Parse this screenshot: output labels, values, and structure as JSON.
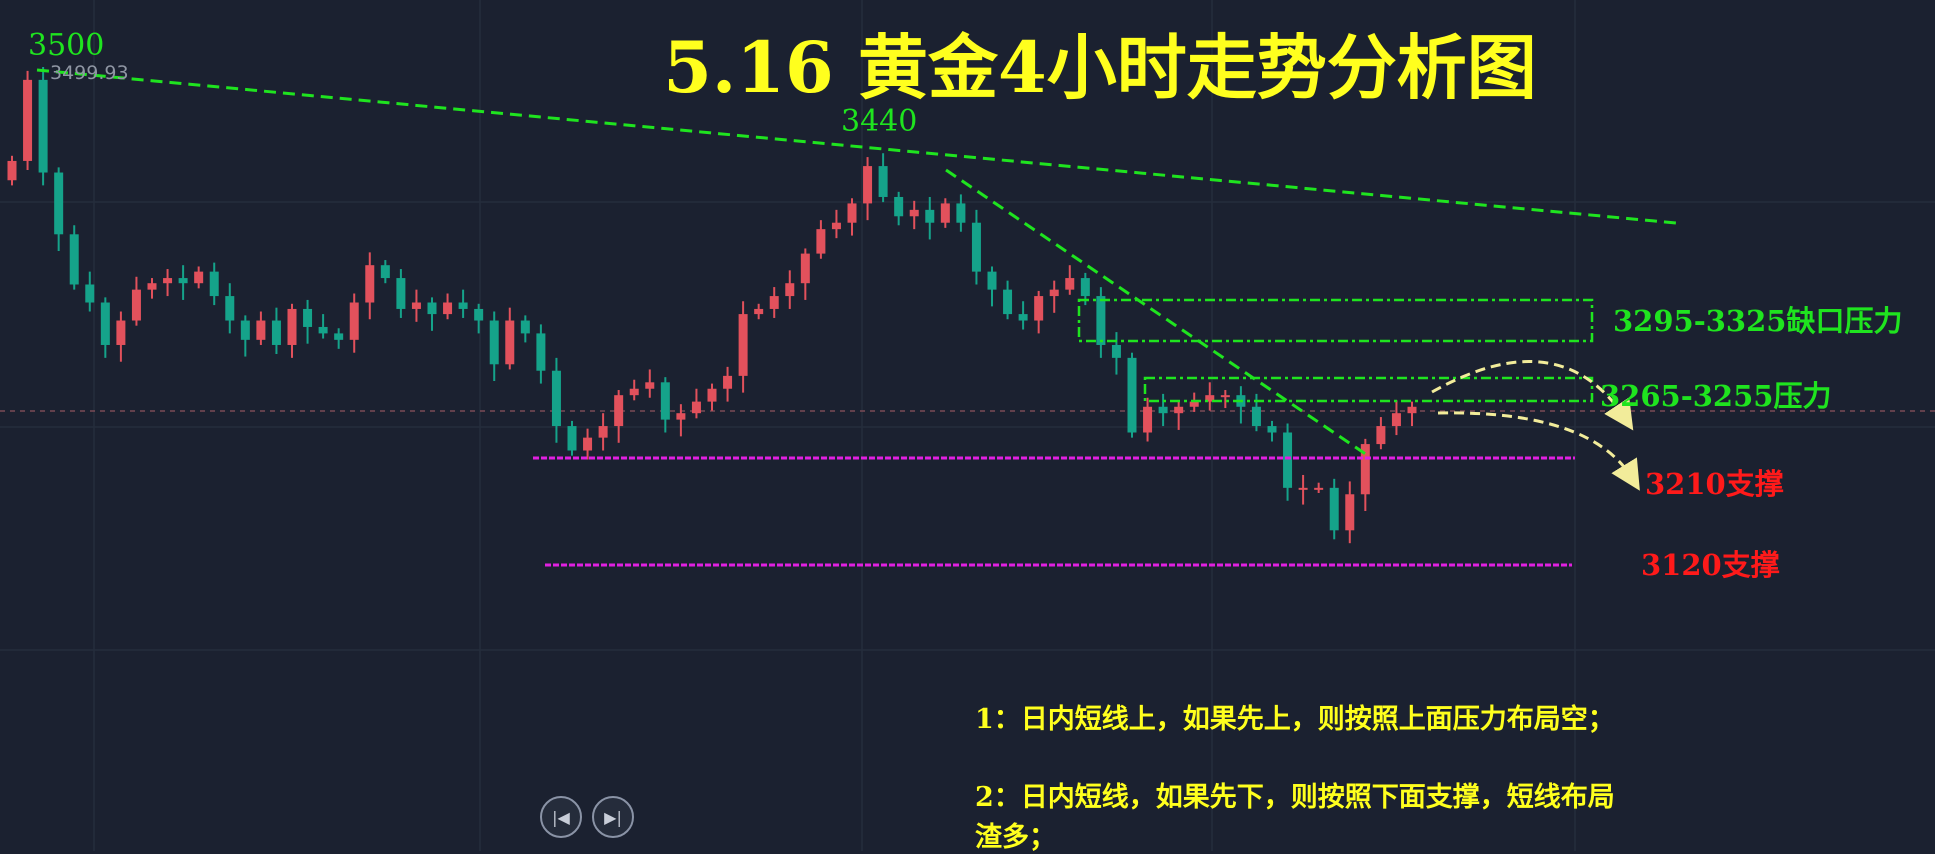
{
  "title": "5.16 黄金4小时走势分析图",
  "chart_data": {
    "type": "candlestick",
    "title": "5.16 黄金4小时走势分析图",
    "price_range": [
      3100,
      3520
    ],
    "grid": true,
    "colors": {
      "up": "#e2515c",
      "down": "#15a38a",
      "trendline": "#1fe41f",
      "support_line": "#e020e0",
      "arrow": "#f2ec9a"
    },
    "closes": [
      3434,
      3497,
      3425,
      3377,
      3338,
      3324,
      3291,
      3310,
      3334,
      3339,
      3343,
      3339,
      3348,
      3329,
      3310,
      3295,
      3310,
      3291,
      3319,
      3305,
      3300,
      3295,
      3324,
      3353,
      3343,
      3319,
      3324,
      3315,
      3324,
      3319,
      3310,
      3276,
      3310,
      3300,
      3271,
      3228,
      3209,
      3219,
      3228,
      3252,
      3257,
      3262,
      3233,
      3238,
      3247,
      3257,
      3267,
      3315,
      3319,
      3329,
      3339,
      3362,
      3381,
      3386,
      3401,
      3430,
      3406,
      3391,
      3396,
      3386,
      3401,
      3386,
      3348,
      3334,
      3315,
      3310,
      3329,
      3334,
      3343,
      3329,
      3291,
      3281,
      3223,
      3243,
      3238,
      3243,
      3247,
      3252,
      3252,
      3243,
      3228,
      3223,
      3180,
      3180,
      3180,
      3147,
      3175,
      3214,
      3228,
      3238,
      3243
    ],
    "annotations": {
      "high_label": "3500",
      "high_price_tag": "3499.93",
      "mid_high_label": "3440",
      "gap_resistance": {
        "range": [
          3295,
          3325
        ],
        "label": "3295-3325缺口压力"
      },
      "resistance": {
        "range": [
          3255,
          3265
        ],
        "label": "3265-3255压力"
      },
      "support_1": {
        "price": 3210,
        "label": "3210支撑"
      },
      "support_2": {
        "price": 3120,
        "label": "3120支撑"
      }
    }
  },
  "notes": [
    "1：日内短线上，如果先上，则按照上面压力布局空；",
    "2：日内短线，如果先下，则按照下面支撑，短线布局",
    "渣多；"
  ],
  "controls": {
    "prev_icon": "skip-back-icon",
    "next_icon": "skip-forward-icon"
  }
}
